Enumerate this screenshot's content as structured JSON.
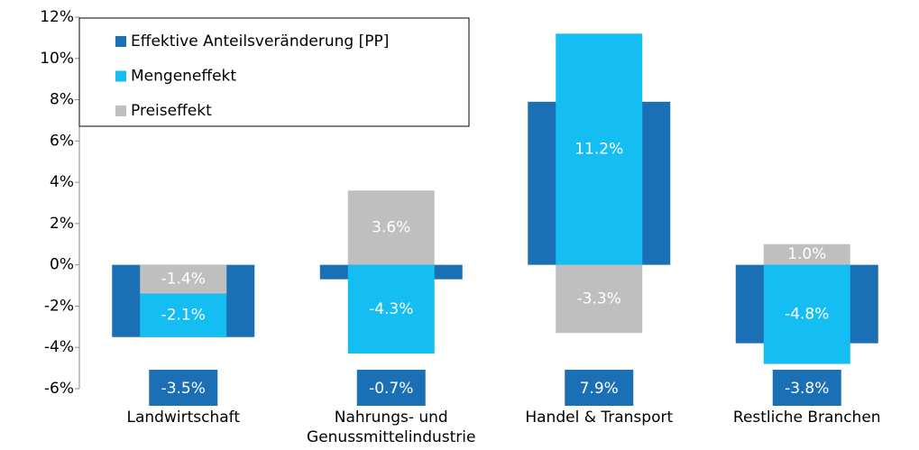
{
  "chart_data": {
    "type": "bar",
    "categories": [
      "Landwirtschaft",
      "Nahrungs- und Genussmittelindustrie",
      "Handel & Transport",
      "Restliche Branchen"
    ],
    "series": [
      {
        "name": "Effektive Anteilsveränderung [PP]",
        "color": "#1b6fb5",
        "values": [
          -3.5,
          -0.7,
          7.9,
          -3.8
        ],
        "value_labels": [
          "-3.5%",
          "-0.7%",
          "7.9%",
          "-3.8%"
        ]
      },
      {
        "name": "Mengeneffekt",
        "color": "#14bdf2",
        "values": [
          -2.1,
          -4.3,
          11.2,
          -4.8
        ],
        "value_labels": [
          "-2.1%",
          "-4.3%",
          "11.2%",
          "-4.8%"
        ]
      },
      {
        "name": "Preiseffekt",
        "color": "#bfbfbf",
        "values": [
          -1.4,
          3.6,
          -3.3,
          1.0
        ],
        "value_labels": [
          "-1.4%",
          "3.6%",
          "-3.3%",
          "1.0%"
        ]
      }
    ],
    "ylim": [
      -6,
      12
    ],
    "yticks": [
      {
        "value": -6,
        "label": "-6%"
      },
      {
        "value": -4,
        "label": "-4%"
      },
      {
        "value": -2,
        "label": "-2%"
      },
      {
        "value": 0,
        "label": "0%"
      },
      {
        "value": 2,
        "label": "2%"
      },
      {
        "value": 4,
        "label": "4%"
      },
      {
        "value": 6,
        "label": "6%"
      },
      {
        "value": 8,
        "label": "8%"
      },
      {
        "value": 10,
        "label": "10%"
      },
      {
        "value": 12,
        "label": "12%"
      }
    ],
    "grid": false,
    "legend": "top-left"
  }
}
